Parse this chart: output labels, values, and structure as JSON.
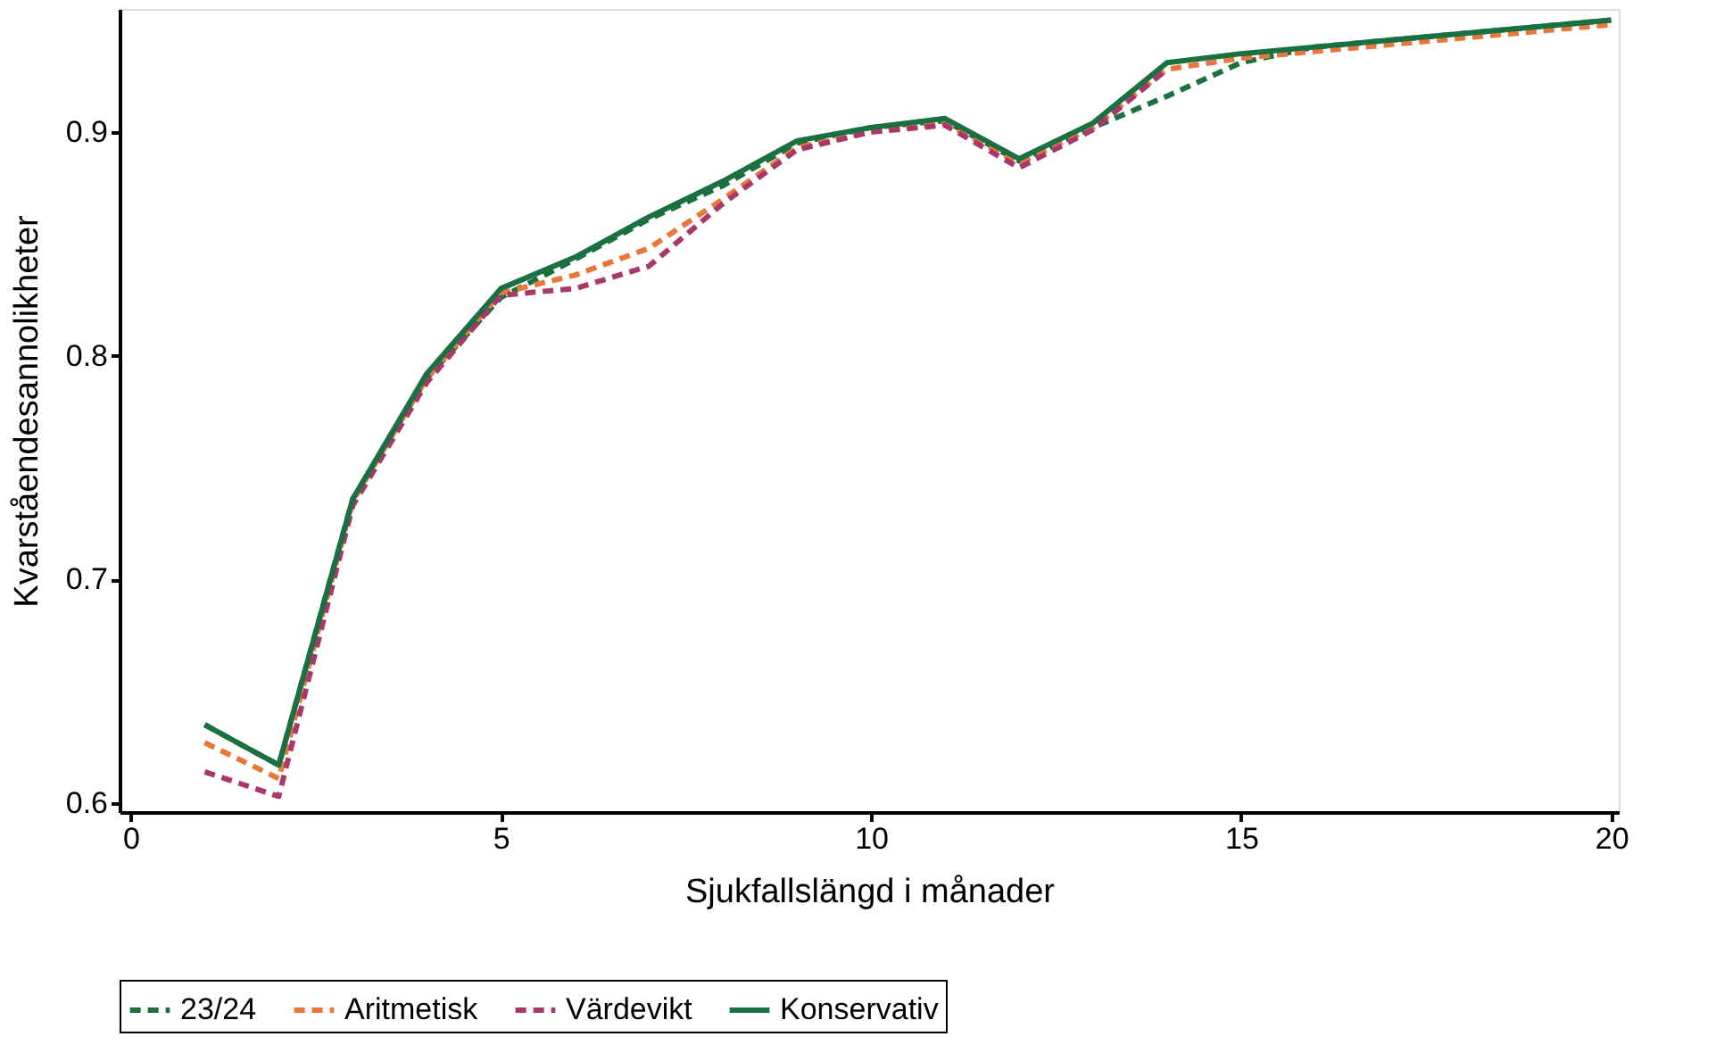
{
  "chart_data": {
    "type": "line",
    "xlabel": "Sjukfallslängd i månader",
    "ylabel": "Kvarståendesannolikheter",
    "x": [
      1,
      2,
      3,
      4,
      5,
      6,
      7,
      8,
      9,
      10,
      11,
      12,
      13,
      14,
      15,
      16,
      17,
      18,
      19,
      20
    ],
    "series": [
      {
        "name": "23/24",
        "color": "#1a7041",
        "line_style": "dashed",
        "values": [
          0.635,
          0.617,
          0.736,
          0.79,
          0.826,
          0.843,
          0.861,
          0.876,
          0.895,
          0.902,
          0.905,
          0.887,
          0.902,
          0.916,
          0.931,
          0.938,
          0.941,
          0.944,
          0.947,
          0.95
        ]
      },
      {
        "name": "Aritmetisk",
        "color": "#e8773a",
        "line_style": "dashed",
        "values": [
          0.627,
          0.611,
          0.735,
          0.79,
          0.828,
          0.836,
          0.848,
          0.87,
          0.893,
          0.9,
          0.904,
          0.886,
          0.902,
          0.928,
          0.933,
          0.936,
          0.939,
          0.942,
          0.945,
          0.948
        ]
      },
      {
        "name": "Värdevikt",
        "color": "#a8386a",
        "line_style": "dashed",
        "values": [
          0.614,
          0.603,
          0.733,
          0.788,
          0.827,
          0.83,
          0.84,
          0.868,
          0.892,
          0.9,
          0.903,
          0.884,
          0.901,
          0.928,
          null,
          null,
          null,
          null,
          null,
          null
        ]
      },
      {
        "name": "Konservativ",
        "color": "#1a7041",
        "line_style": "solid",
        "values": [
          0.635,
          0.617,
          0.736,
          0.792,
          0.83,
          0.844,
          0.862,
          0.878,
          0.896,
          0.902,
          0.906,
          0.888,
          0.904,
          0.931,
          0.935,
          0.938,
          0.941,
          0.944,
          0.947,
          0.95
        ]
      }
    ],
    "xlim": [
      -0.15,
      20.1
    ],
    "ylim": [
      0.596,
      0.955
    ],
    "xticks": [
      0,
      5,
      10,
      15,
      20
    ],
    "yticks": [
      0.6,
      0.7,
      0.8,
      0.9
    ],
    "grid": false,
    "legend": "bottom",
    "marker": "none"
  }
}
